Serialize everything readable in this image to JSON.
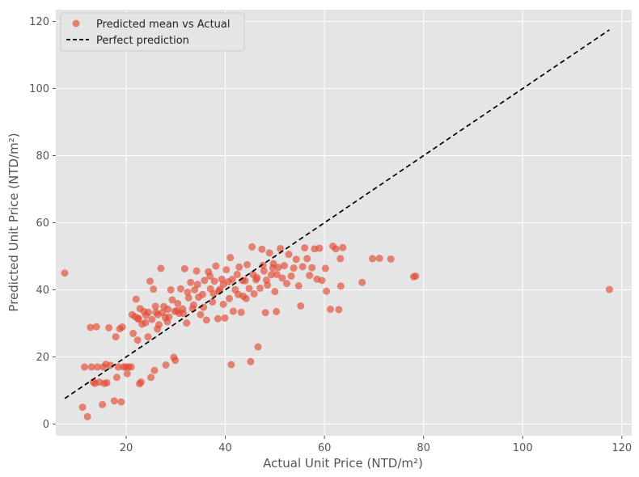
{
  "chart_data": {
    "type": "scatter",
    "title": "",
    "xlabel": "Actual Unit Price (NTD/m²)",
    "ylabel": "Predicted Unit Price (NTD/m²)",
    "xlim": [
      5.8,
      122.0
    ],
    "ylim": [
      -3.5,
      123.5
    ],
    "xticks": [
      20,
      40,
      60,
      80,
      100,
      120
    ],
    "yticks": [
      0,
      20,
      40,
      60,
      80,
      100,
      120
    ],
    "grid": true,
    "legend_position": "top-left",
    "series": [
      {
        "name": "Predicted mean vs Actual",
        "kind": "scatter",
        "color": "#e24a33",
        "opacity": 0.65,
        "points": [
          [
            7.6,
            45.0
          ],
          [
            11.2,
            5.0
          ],
          [
            11.6,
            17.0
          ],
          [
            12.2,
            2.2
          ],
          [
            12.8,
            28.8
          ],
          [
            13.0,
            17.0
          ],
          [
            13.4,
            12.5
          ],
          [
            13.7,
            12.1
          ],
          [
            14.0,
            29.0
          ],
          [
            14.2,
            17.0
          ],
          [
            14.6,
            12.5
          ],
          [
            15.2,
            5.8
          ],
          [
            15.4,
            17.0
          ],
          [
            15.6,
            12.1
          ],
          [
            15.9,
            17.8
          ],
          [
            16.1,
            12.3
          ],
          [
            16.5,
            28.7
          ],
          [
            16.8,
            17.5
          ],
          [
            17.6,
            6.9
          ],
          [
            17.9,
            26.0
          ],
          [
            18.1,
            13.9
          ],
          [
            18.4,
            17.0
          ],
          [
            18.7,
            28.4
          ],
          [
            19.0,
            6.6
          ],
          [
            19.2,
            28.9
          ],
          [
            19.5,
            17.0
          ],
          [
            19.9,
            17.0
          ],
          [
            20.2,
            15.0
          ],
          [
            20.5,
            17.0
          ],
          [
            21.0,
            17.0
          ],
          [
            21.2,
            32.6
          ],
          [
            21.4,
            27.0
          ],
          [
            21.8,
            32.0
          ],
          [
            22.0,
            37.2
          ],
          [
            22.3,
            25.0
          ],
          [
            22.5,
            31.5
          ],
          [
            22.7,
            12.0
          ],
          [
            23.0,
            12.5
          ],
          [
            23.2,
            29.8
          ],
          [
            23.6,
            33.5
          ],
          [
            24.0,
            32.4
          ],
          [
            24.4,
            26.0
          ],
          [
            24.8,
            42.6
          ],
          [
            25.0,
            13.9
          ],
          [
            25.2,
            31.2
          ],
          [
            25.5,
            40.2
          ],
          [
            25.7,
            16.0
          ],
          [
            26.0,
            33.3
          ],
          [
            26.3,
            28.3
          ],
          [
            26.6,
            29.6
          ],
          [
            27.0,
            46.4
          ],
          [
            27.3,
            33.2
          ],
          [
            27.6,
            35.0
          ],
          [
            28.0,
            17.6
          ],
          [
            28.3,
            30.5
          ],
          [
            28.6,
            31.9
          ],
          [
            29.0,
            40.0
          ],
          [
            29.3,
            37.0
          ],
          [
            29.6,
            19.9
          ],
          [
            29.9,
            19.0
          ],
          [
            30.3,
            33.8
          ],
          [
            30.7,
            33.0
          ],
          [
            31.0,
            40.3
          ],
          [
            31.4,
            34.3
          ],
          [
            31.8,
            46.3
          ],
          [
            32.2,
            30.1
          ],
          [
            32.6,
            37.6
          ],
          [
            33.0,
            42.2
          ],
          [
            33.4,
            34.4
          ],
          [
            33.8,
            40.0
          ],
          [
            34.2,
            45.6
          ],
          [
            34.6,
            37.8
          ],
          [
            35.0,
            32.6
          ],
          [
            35.4,
            38.6
          ],
          [
            35.8,
            42.8
          ],
          [
            36.2,
            31.0
          ],
          [
            36.6,
            45.4
          ],
          [
            37.0,
            40.3
          ],
          [
            37.4,
            36.4
          ],
          [
            37.8,
            42.6
          ],
          [
            38.1,
            47.1
          ],
          [
            38.5,
            31.4
          ],
          [
            38.9,
            40.1
          ],
          [
            39.3,
            43.2
          ],
          [
            39.6,
            35.7
          ],
          [
            39.9,
            31.6
          ],
          [
            40.2,
            46.0
          ],
          [
            40.6,
            42.4
          ],
          [
            41.0,
            49.6
          ],
          [
            41.2,
            17.7
          ],
          [
            41.6,
            33.6
          ],
          [
            42.0,
            40.0
          ],
          [
            42.4,
            44.6
          ],
          [
            42.8,
            46.8
          ],
          [
            43.2,
            33.3
          ],
          [
            43.6,
            38.1
          ],
          [
            44.0,
            42.7
          ],
          [
            44.4,
            47.5
          ],
          [
            44.8,
            40.4
          ],
          [
            45.1,
            18.6
          ],
          [
            45.4,
            52.8
          ],
          [
            45.8,
            38.8
          ],
          [
            46.2,
            43.0
          ],
          [
            46.6,
            23.0
          ],
          [
            47.0,
            40.5
          ],
          [
            47.4,
            52.1
          ],
          [
            47.8,
            45.6
          ],
          [
            48.1,
            33.2
          ],
          [
            48.5,
            41.4
          ],
          [
            48.9,
            51.0
          ],
          [
            49.3,
            44.5
          ],
          [
            49.7,
            47.8
          ],
          [
            50.0,
            39.5
          ],
          [
            50.3,
            33.5
          ],
          [
            50.7,
            46.7
          ],
          [
            51.1,
            52.3
          ],
          [
            51.5,
            43.5
          ],
          [
            51.9,
            47.2
          ],
          [
            52.4,
            41.9
          ],
          [
            52.8,
            50.6
          ],
          [
            53.3,
            44.1
          ],
          [
            53.8,
            46.5
          ],
          [
            54.3,
            49.1
          ],
          [
            54.8,
            41.2
          ],
          [
            55.2,
            35.2
          ],
          [
            55.6,
            46.9
          ],
          [
            56.0,
            52.5
          ],
          [
            56.5,
            49.3
          ],
          [
            57.0,
            44.3
          ],
          [
            57.5,
            46.6
          ],
          [
            58.0,
            52.2
          ],
          [
            58.5,
            43.2
          ],
          [
            59.0,
            52.4
          ],
          [
            59.5,
            42.8
          ],
          [
            60.2,
            46.4
          ],
          [
            60.4,
            39.6
          ],
          [
            61.2,
            34.2
          ],
          [
            61.7,
            53.0
          ],
          [
            62.3,
            52.2
          ],
          [
            62.9,
            34.1
          ],
          [
            63.2,
            49.3
          ],
          [
            63.3,
            41.1
          ],
          [
            63.7,
            52.6
          ],
          [
            67.6,
            42.2
          ],
          [
            69.7,
            49.3
          ],
          [
            71.1,
            49.4
          ],
          [
            73.4,
            49.2
          ],
          [
            78.0,
            43.9
          ],
          [
            78.4,
            44.1
          ],
          [
            117.5,
            40.1
          ],
          [
            22.8,
            34.4
          ],
          [
            23.9,
            30.2
          ],
          [
            25.9,
            35.1
          ],
          [
            27.9,
            31.7
          ],
          [
            29.8,
            33.6
          ],
          [
            31.5,
            33.0
          ],
          [
            33.6,
            35.5
          ],
          [
            35.6,
            34.8
          ],
          [
            37.6,
            38.9
          ],
          [
            39.6,
            41.6
          ],
          [
            41.4,
            43.1
          ],
          [
            43.5,
            42.8
          ],
          [
            45.6,
            44.6
          ],
          [
            47.6,
            47.3
          ],
          [
            49.6,
            46.5
          ],
          [
            36.9,
            44.1
          ],
          [
            38.7,
            39.6
          ],
          [
            40.8,
            37.4
          ],
          [
            42.6,
            38.6
          ],
          [
            44.2,
            37.4
          ],
          [
            46.4,
            43.6
          ],
          [
            48.3,
            42.9
          ],
          [
            50.4,
            44.6
          ],
          [
            34.4,
            41.6
          ],
          [
            32.4,
            39.3
          ],
          [
            30.4,
            35.9
          ],
          [
            28.4,
            34.2
          ],
          [
            26.4,
            32.6
          ],
          [
            24.5,
            33.3
          ],
          [
            22.4,
            31.3
          ]
        ]
      },
      {
        "name": "Perfect prediction",
        "kind": "line",
        "style": "dashed",
        "color": "#000000",
        "points": [
          [
            7.6,
            7.6
          ],
          [
            117.5,
            117.5
          ]
        ]
      }
    ]
  }
}
